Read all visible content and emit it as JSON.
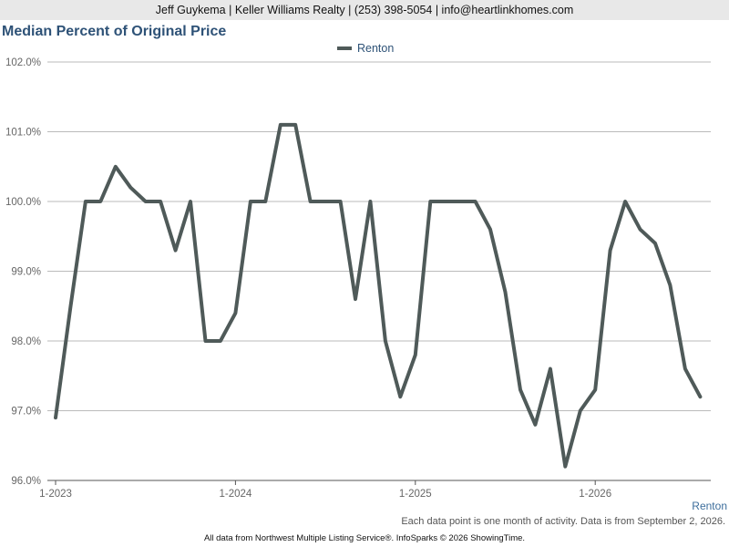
{
  "header": {
    "text": "Jeff Guykema | Keller Williams Realty | (253) 398-5054 | info@heartlinkhomes.com"
  },
  "footer": {
    "series_label": "Renton",
    "note": "Each data point is one month of activity. Data is from September 2, 2026.",
    "source": "All data from Northwest Multiple Listing Service®. InfoSparks © 2026 ShowingTime."
  },
  "colors": {
    "title": "#2e5277",
    "line": "#4f5a59",
    "grid": "#bbbbbb",
    "header_bg": "#e8e8e8"
  },
  "chart_data": {
    "type": "line",
    "title": "Median Percent of Original Price",
    "legend": {
      "position": "top-center",
      "entries": [
        "Renton"
      ]
    },
    "grid": true,
    "ylim": [
      96.0,
      102.0
    ],
    "y_ticks": [
      "96.0%",
      "97.0%",
      "98.0%",
      "99.0%",
      "100.0%",
      "101.0%",
      "102.0%"
    ],
    "x_ticks": [
      "1-2023",
      "1-2024",
      "1-2025",
      "1-2026"
    ],
    "x": [
      "2023-01",
      "2023-02",
      "2023-03",
      "2023-04",
      "2023-05",
      "2023-06",
      "2023-07",
      "2023-08",
      "2023-09",
      "2023-10",
      "2023-11",
      "2023-12",
      "2024-01",
      "2024-02",
      "2024-03",
      "2024-04",
      "2024-05",
      "2024-06",
      "2024-07",
      "2024-08",
      "2024-09",
      "2024-10",
      "2024-11",
      "2024-12",
      "2025-01",
      "2025-02",
      "2025-03",
      "2025-04",
      "2025-05",
      "2025-06",
      "2025-07",
      "2025-08",
      "2025-09",
      "2025-10",
      "2025-11",
      "2025-12",
      "2026-01",
      "2026-02",
      "2026-03",
      "2026-04",
      "2026-05",
      "2026-06",
      "2026-07",
      "2026-08"
    ],
    "series": [
      {
        "name": "Renton",
        "values": [
          96.9,
          98.5,
          100.0,
          100.0,
          100.5,
          100.2,
          100.0,
          100.0,
          99.3,
          100.0,
          98.0,
          98.0,
          98.4,
          100.0,
          100.0,
          101.1,
          101.1,
          100.0,
          100.0,
          100.0,
          98.6,
          100.0,
          98.0,
          97.2,
          97.8,
          100.0,
          100.0,
          100.0,
          100.0,
          99.6,
          98.7,
          97.3,
          96.8,
          97.6,
          96.2,
          97.0,
          97.3,
          99.3,
          100.0,
          99.6,
          99.4,
          98.8,
          97.6,
          97.2
        ]
      }
    ]
  }
}
